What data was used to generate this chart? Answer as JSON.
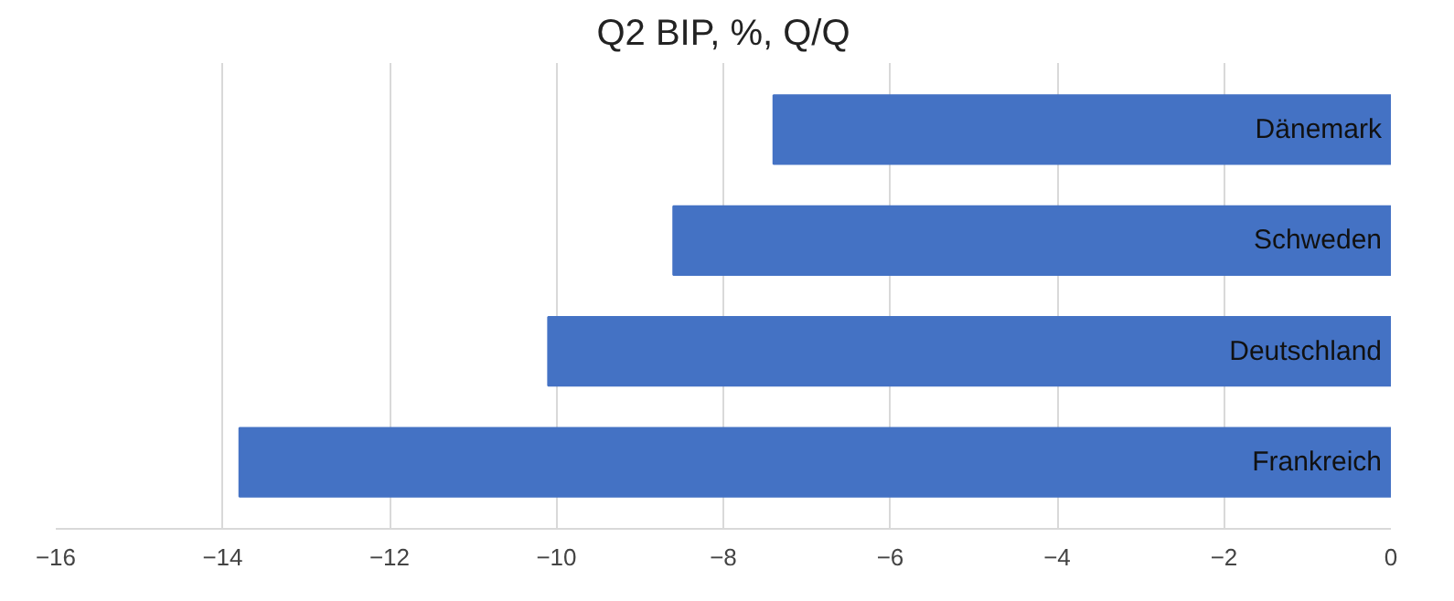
{
  "chart_data": {
    "type": "bar",
    "orientation": "horizontal",
    "title": "Q2 BIP, %, Q/Q",
    "categories": [
      "Dänemark",
      "Schweden",
      "Deutschland",
      "Frankreich"
    ],
    "values": [
      -7.4,
      -8.6,
      -10.1,
      -13.8
    ],
    "color": "#4472c4",
    "xlim": [
      -16,
      0
    ],
    "xticks": [
      -16,
      -14,
      -12,
      -10,
      -8,
      -6,
      -4,
      -2,
      0
    ],
    "grid": "x"
  }
}
